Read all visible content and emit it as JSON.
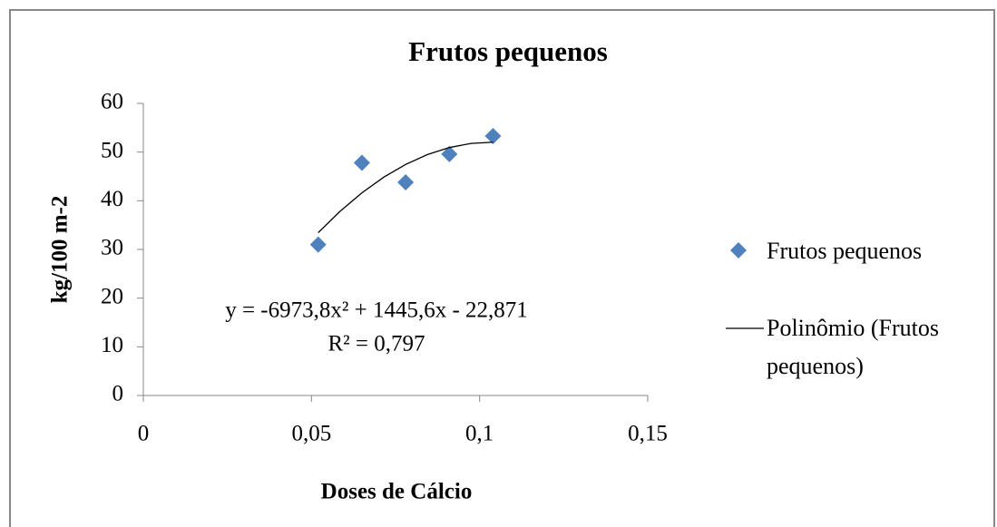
{
  "chart_data": {
    "type": "scatter",
    "title": "Frutos pequenos",
    "x_label": "Doses de Cálcio",
    "y_label": "kg/100 m-2",
    "series": [
      {
        "name": "Frutos pequenos",
        "color": "#4f81bd",
        "marker": "diamond",
        "x": [
          0.052,
          0.065,
          0.078,
          0.091,
          0.104
        ],
        "values": [
          31,
          47.8,
          43.8,
          49.6,
          53.3
        ]
      },
      {
        "name": "Polinômio (Frutos pequenos)",
        "color": "#000000",
        "type": "line",
        "x": [
          0.052,
          0.0585,
          0.065,
          0.0715,
          0.078,
          0.0845,
          0.091,
          0.0975,
          0.104
        ],
        "values": [
          33.44,
          37.83,
          41.63,
          44.84,
          47.46,
          49.49,
          50.93,
          51.78,
          52.04
        ]
      }
    ],
    "annotations": [
      "y = -6973,8x² + 1445,6x - 22,871",
      "R² = 0,797"
    ],
    "xlim": [
      0,
      0.15
    ],
    "xticks": [
      0,
      {
        "value": 0.05,
        "label": "0,05"
      },
      {
        "value": 0.1,
        "label": "0,1"
      },
      {
        "value": 0.15,
        "label": "0,15"
      }
    ],
    "ylim": [
      0,
      60
    ],
    "yticks": [
      0,
      10,
      20,
      30,
      40,
      50,
      60
    ],
    "grid": false,
    "legend": "right"
  }
}
